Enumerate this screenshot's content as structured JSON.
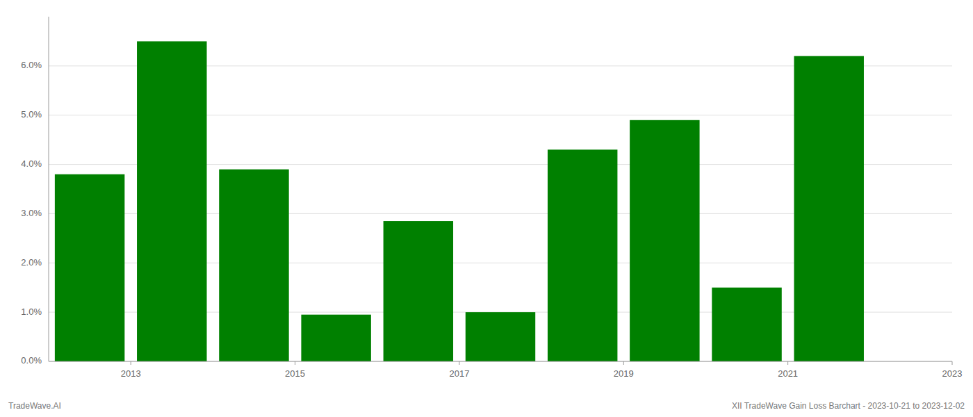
{
  "chart_data": {
    "type": "bar",
    "title": "XII TradeWave Gain Loss Barchart - 2023-10-21 to 2023-12-02",
    "annotations": [
      "TradeWave.AI"
    ],
    "x": [
      2013,
      2014,
      2015,
      2016,
      2017,
      2018,
      2019,
      2020,
      2021,
      2022
    ],
    "values": [
      0.038,
      0.065,
      0.039,
      0.0095,
      0.0285,
      0.01,
      0.043,
      0.049,
      0.015,
      0.062
    ],
    "color": "#008000",
    "xlim": [
      2012.5,
      2023.5
    ],
    "xticks": [
      {
        "value": 2013.5,
        "label": "2013"
      },
      {
        "value": 2015.5,
        "label": "2015"
      },
      {
        "value": 2017.5,
        "label": "2017"
      },
      {
        "value": 2019.5,
        "label": "2019"
      },
      {
        "value": 2021.5,
        "label": "2021"
      },
      {
        "value": 2023.5,
        "label": "2023"
      }
    ],
    "ylim": [
      0,
      0.07
    ],
    "yticks": [
      {
        "value": 0.0,
        "label": "0.0%"
      },
      {
        "value": 0.01,
        "label": "1.0%"
      },
      {
        "value": 0.02,
        "label": "2.0%"
      },
      {
        "value": 0.03,
        "label": "3.0%"
      },
      {
        "value": 0.04,
        "label": "4.0%"
      },
      {
        "value": 0.05,
        "label": "5.0%"
      },
      {
        "value": 0.06,
        "label": "6.0%"
      }
    ],
    "grid": true
  }
}
